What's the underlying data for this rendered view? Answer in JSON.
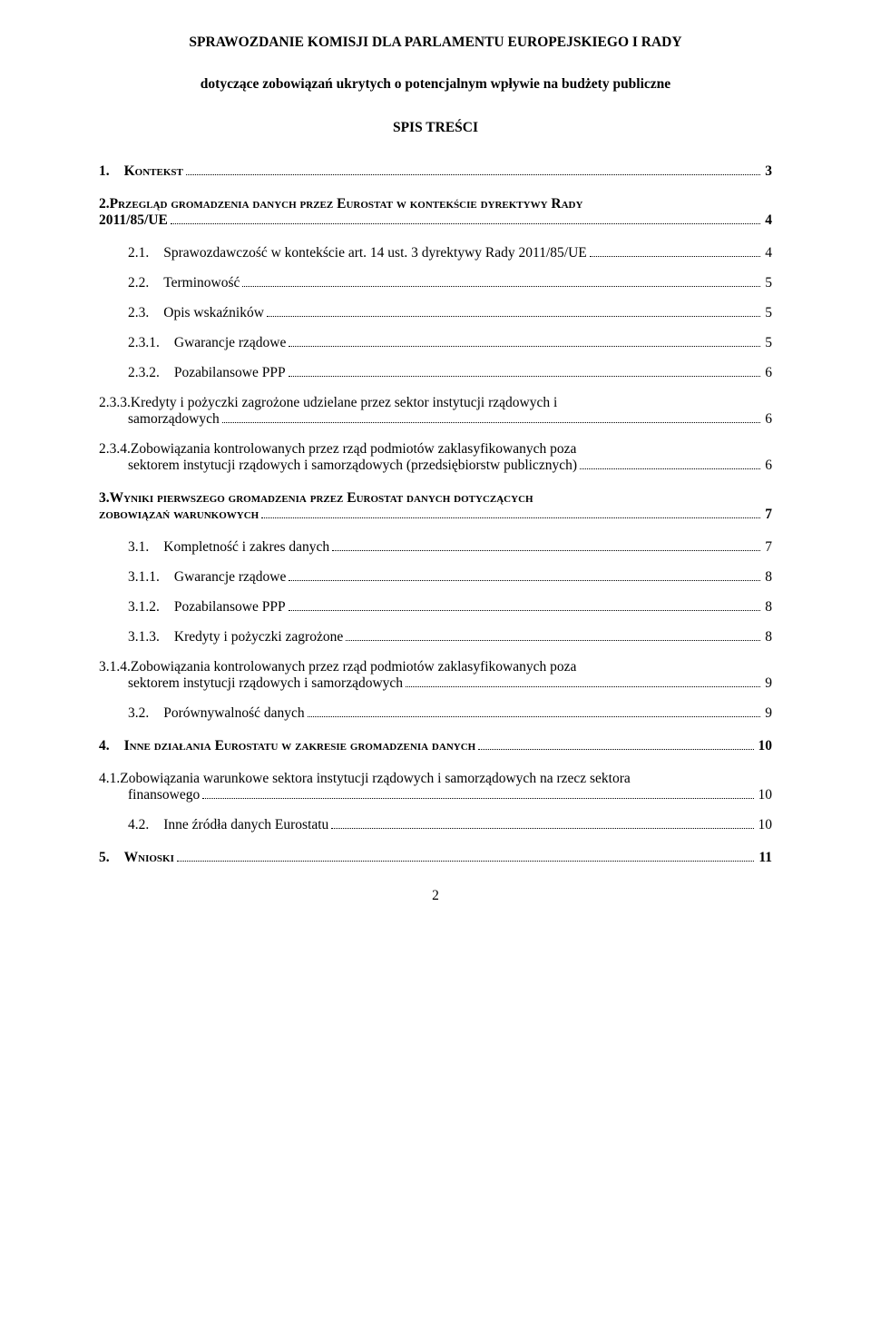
{
  "header": {
    "title": "SPRAWOZDANIE KOMISJI DLA PARLAMENTU EUROPEJSKIEGO I RADY",
    "subtitle": "dotyczące zobowiązań ukrytych o potencjalnym wpływie na budżety publiczne",
    "toc_title": "SPIS TREŚCI"
  },
  "toc": {
    "s1": {
      "num": "1.",
      "text": "Kontekst",
      "page": "3"
    },
    "s2": {
      "num": "2.",
      "line1": "Przegląd gromadzenia danych przez Eurostat w kontekście dyrektywy Rady",
      "line2": "2011/85/UE",
      "page": "4"
    },
    "s21": {
      "num": "2.1.",
      "text": "Sprawozdawczość w kontekście art. 14 ust. 3 dyrektywy Rady 2011/85/UE",
      "page": "4"
    },
    "s22": {
      "num": "2.2.",
      "text": "Terminowość",
      "page": "5"
    },
    "s23": {
      "num": "2.3.",
      "text": "Opis wskaźników",
      "page": "5"
    },
    "s231": {
      "num": "2.3.1.",
      "text": "Gwarancje rządowe",
      "page": "5"
    },
    "s232": {
      "num": "2.3.2.",
      "text": "Pozabilansowe PPP",
      "page": "6"
    },
    "s233": {
      "num": "2.3.3.",
      "line1": "Kredyty i pożyczki zagrożone udzielane przez sektor instytucji rządowych i",
      "line2": "samorządowych",
      "page": "6"
    },
    "s234": {
      "num": "2.3.4.",
      "line1": "Zobowiązania kontrolowanych przez rząd podmiotów zaklasyfikowanych poza",
      "line2": "sektorem instytucji rządowych i samorządowych (przedsiębiorstw publicznych)",
      "page": "6"
    },
    "s3": {
      "num": "3.",
      "line1": "Wyniki pierwszego gromadzenia przez Eurostat danych dotyczących",
      "line2": "zobowiązań warunkowych",
      "page": "7"
    },
    "s31": {
      "num": "3.1.",
      "text": "Kompletność i zakres danych",
      "page": "7"
    },
    "s311": {
      "num": "3.1.1.",
      "text": "Gwarancje rządowe",
      "page": "8"
    },
    "s312": {
      "num": "3.1.2.",
      "text": "Pozabilansowe PPP",
      "page": "8"
    },
    "s313": {
      "num": "3.1.3.",
      "text": "Kredyty i pożyczki zagrożone",
      "page": "8"
    },
    "s314": {
      "num": "3.1.4.",
      "line1": "Zobowiązania kontrolowanych przez rząd podmiotów zaklasyfikowanych poza",
      "line2": "sektorem instytucji rządowych i samorządowych",
      "page": "9"
    },
    "s32": {
      "num": "3.2.",
      "text": "Porównywalność danych",
      "page": "9"
    },
    "s4": {
      "num": "4.",
      "text": "Inne działania Eurostatu w zakresie gromadzenia danych",
      "page": "10"
    },
    "s41": {
      "num": "4.1.",
      "line1": "Zobowiązania warunkowe sektora instytucji rządowych i samorządowych na rzecz sektora",
      "line2": "finansowego",
      "page": "10"
    },
    "s42": {
      "num": "4.2.",
      "text": "Inne źródła danych Eurostatu",
      "page": "10"
    },
    "s5": {
      "num": "5.",
      "text": "Wnioski",
      "page": "11"
    }
  },
  "page_number": "2"
}
